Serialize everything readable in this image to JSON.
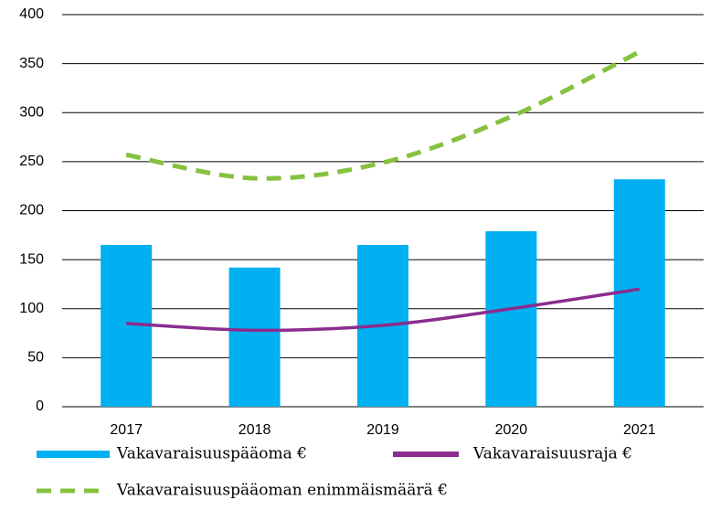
{
  "chart_data": {
    "type": "bar",
    "categories": [
      "2017",
      "2018",
      "2019",
      "2020",
      "2021"
    ],
    "series": [
      {
        "name": "Vakavaraisuuspääoma €",
        "type": "bar",
        "color": "#00b0f0",
        "values": [
          165,
          142,
          165,
          179,
          232
        ]
      },
      {
        "name": "Vakavaraisuusraja €",
        "type": "line",
        "color": "#8b2c8f",
        "values": [
          85,
          78,
          83,
          100,
          120
        ]
      },
      {
        "name": "Vakavaraisuuspääoman enimmäismäärä  €",
        "type": "line",
        "dashed": true,
        "color": "#86c13f",
        "values": [
          257,
          233,
          249,
          296,
          362
        ]
      }
    ],
    "ylim": [
      0,
      400
    ],
    "yticks": [
      0,
      50,
      100,
      150,
      200,
      250,
      300,
      350,
      400
    ],
    "grid": true,
    "legend": "bottom"
  }
}
